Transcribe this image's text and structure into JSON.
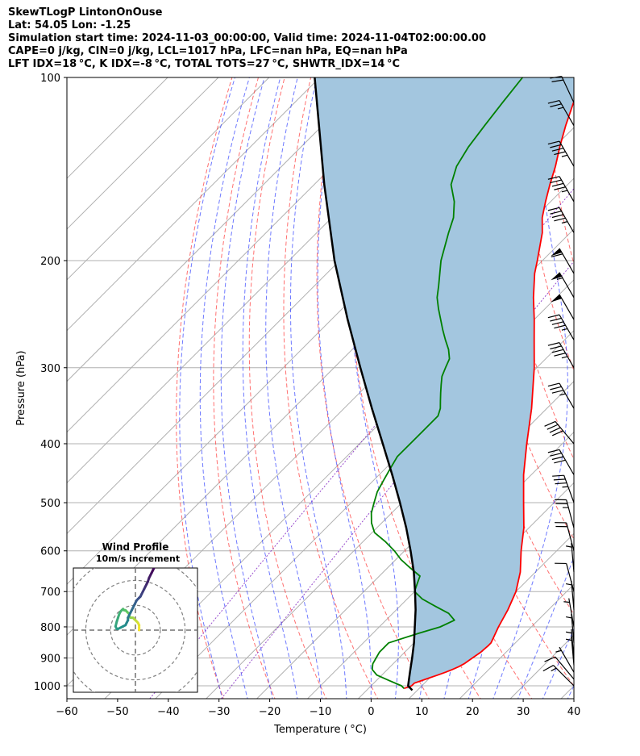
{
  "header": {
    "line1": "SkewTLogP LintonOnOuse",
    "line2": "Lat: 54.05   Lon: -1.25",
    "line3": "Simulation start time: 2024-11-03_00:00:00, Valid time: 2024-11-04T02:00:00.00",
    "line4": "CAPE=0 j/kg, CIN=0 j/kg, LCL=1017 hPa, LFC=nan hPa, EQ=nan hPa",
    "line5": "LFT IDX=18 °C, K IDX=-8 °C, TOTAL TOTS=27 °C, SHWTR_IDX=14 °C"
  },
  "chart_data": [
    {
      "type": "line",
      "subtype": "skew-t log-p",
      "xlabel": "Temperature ( °C)",
      "ylabel": "Pressure (hPa)",
      "xlim": [
        -60,
        40
      ],
      "ylim": [
        1050,
        100
      ],
      "y_scale": "log",
      "x_ticks": [
        -60,
        -50,
        -40,
        -30,
        -20,
        -10,
        0,
        10,
        20,
        30,
        40
      ],
      "x_tick_labels": [
        "−60",
        "−50",
        "−40",
        "−30",
        "−20",
        "−10",
        "0",
        "10",
        "20",
        "30",
        "40"
      ],
      "y_ticks": [
        1000,
        900,
        800,
        700,
        600,
        500,
        400,
        300,
        200,
        100
      ],
      "y_tick_labels": [
        "1000",
        "900",
        "800",
        "700",
        "600",
        "500",
        "400",
        "300",
        "200",
        "100"
      ],
      "grid": true,
      "series": [
        {
          "color": "#ff0000",
          "points": [
            [
              1010,
              7
            ],
            [
              1000,
              8
            ],
            [
              990,
              8
            ],
            [
              980,
              9
            ],
            [
              970,
              10
            ],
            [
              960,
              11
            ],
            [
              950,
              12
            ],
            [
              940,
              12.8
            ],
            [
              930,
              13.5
            ],
            [
              920,
              14
            ],
            [
              900,
              14.5
            ],
            [
              880,
              15
            ],
            [
              860,
              15.2
            ],
            [
              850,
              15.2
            ],
            [
              800,
              13.5
            ],
            [
              750,
              12
            ],
            [
              700,
              10
            ],
            [
              650,
              7
            ],
            [
              600,
              3
            ],
            [
              550,
              -1
            ],
            [
              500,
              -6
            ],
            [
              450,
              -11.5
            ],
            [
              400,
              -17
            ],
            [
              350,
              -23
            ],
            [
              300,
              -30.5
            ],
            [
              270,
              -36
            ],
            [
              250,
              -40
            ],
            [
              230,
              -44.5
            ],
            [
              210,
              -49
            ],
            [
              200,
              -51
            ],
            [
              180,
              -55.5
            ],
            [
              170,
              -58.5
            ],
            [
              160,
              -61
            ],
            [
              150,
              -63.5
            ],
            [
              140,
              -66
            ],
            [
              130,
              -69
            ],
            [
              120,
              -72
            ],
            [
              110,
              -75
            ],
            [
              100,
              -77.5
            ]
          ]
        },
        {
          "color": "#008000",
          "points": [
            [
              1010,
              7
            ],
            [
              1000,
              6
            ],
            [
              980,
              2.5
            ],
            [
              960,
              -1
            ],
            [
              950,
              -2
            ],
            [
              940,
              -3
            ],
            [
              920,
              -4
            ],
            [
              900,
              -4.5
            ],
            [
              880,
              -5
            ],
            [
              850,
              -5
            ],
            [
              820,
              -1
            ],
            [
              800,
              2
            ],
            [
              780,
              3.5
            ],
            [
              760,
              1
            ],
            [
              740,
              -3
            ],
            [
              720,
              -7
            ],
            [
              700,
              -10
            ],
            [
              680,
              -11
            ],
            [
              660,
              -12
            ],
            [
              640,
              -15.5
            ],
            [
              620,
              -19
            ],
            [
              600,
              -22
            ],
            [
              580,
              -25.5
            ],
            [
              560,
              -29.5
            ],
            [
              540,
              -32
            ],
            [
              520,
              -34
            ],
            [
              500,
              -35.5
            ],
            [
              480,
              -37
            ],
            [
              460,
              -38
            ],
            [
              440,
              -39
            ],
            [
              420,
              -40
            ],
            [
              400,
              -40
            ],
            [
              380,
              -40
            ],
            [
              360,
              -40
            ],
            [
              350,
              -41
            ],
            [
              340,
              -42.5
            ],
            [
              330,
              -44
            ],
            [
              320,
              -45.5
            ],
            [
              310,
              -47
            ],
            [
              300,
              -48
            ],
            [
              290,
              -49
            ],
            [
              280,
              -51
            ],
            [
              270,
              -53.5
            ],
            [
              260,
              -56
            ],
            [
              240,
              -61
            ],
            [
              230,
              -63.5
            ],
            [
              220,
              -65.5
            ],
            [
              200,
              -70
            ],
            [
              180,
              -74
            ],
            [
              170,
              -76
            ],
            [
              160,
              -79
            ],
            [
              150,
              -83
            ],
            [
              140,
              -85.5
            ],
            [
              130,
              -87
            ],
            [
              120,
              -88
            ],
            [
              110,
              -89
            ],
            [
              100,
              -90
            ]
          ]
        },
        {
          "color": "#000000",
          "points": [
            [
              1017,
              9
            ],
            [
              1000,
              7.3
            ],
            [
              950,
              5
            ],
            [
              900,
              2.6
            ],
            [
              850,
              0
            ],
            [
              800,
              -3
            ],
            [
              750,
              -6.2
            ],
            [
              700,
              -9.9
            ],
            [
              650,
              -14
            ],
            [
              600,
              -18.8
            ],
            [
              550,
              -24.2
            ],
            [
              500,
              -30.4
            ],
            [
              450,
              -37.4
            ],
            [
              400,
              -45.4
            ],
            [
              350,
              -54.5
            ],
            [
              300,
              -64.8
            ],
            [
              250,
              -76.8
            ],
            [
              200,
              -91
            ],
            [
              150,
              -108
            ],
            [
              100,
              -131
            ]
          ]
        }
      ],
      "shading": {
        "between": [
          "#ff0000 series",
          "#000000 series"
        ],
        "color": "#a3c6df"
      },
      "wind_barbs": [
        {
          "p": 1000,
          "dir": 315,
          "spd": 15
        },
        {
          "p": 975,
          "dir": 320,
          "spd": 10
        },
        {
          "p": 950,
          "dir": 330,
          "spd": 5
        },
        {
          "p": 925,
          "dir": 355,
          "spd": 5
        },
        {
          "p": 900,
          "dir": 355,
          "spd": 5
        },
        {
          "p": 850,
          "dir": 355,
          "spd": 5
        },
        {
          "p": 800,
          "dir": 350,
          "spd": 5
        },
        {
          "p": 750,
          "dir": 355,
          "spd": 5
        },
        {
          "p": 700,
          "dir": 345,
          "spd": 10
        },
        {
          "p": 650,
          "dir": 355,
          "spd": 5
        },
        {
          "p": 600,
          "dir": 345,
          "spd": 20
        },
        {
          "p": 550,
          "dir": 345,
          "spd": 25
        },
        {
          "p": 500,
          "dir": 340,
          "spd": 35
        },
        {
          "p": 450,
          "dir": 330,
          "spd": 40
        },
        {
          "p": 400,
          "dir": 320,
          "spd": 40
        },
        {
          "p": 350,
          "dir": 330,
          "spd": 35
        },
        {
          "p": 300,
          "dir": 330,
          "spd": 45
        },
        {
          "p": 270,
          "dir": 330,
          "spd": 45
        },
        {
          "p": 250,
          "dir": 330,
          "spd": 50
        },
        {
          "p": 230,
          "dir": 330,
          "spd": 55
        },
        {
          "p": 210,
          "dir": 330,
          "spd": 60
        },
        {
          "p": 180,
          "dir": 330,
          "spd": 45
        },
        {
          "p": 160,
          "dir": 330,
          "spd": 45
        },
        {
          "p": 140,
          "dir": 330,
          "spd": 45
        },
        {
          "p": 120,
          "dir": 330,
          "spd": 25
        },
        {
          "p": 110,
          "dir": 335,
          "spd": 20
        }
      ]
    },
    {
      "type": "scatter",
      "subtype": "hodograph",
      "title": "Wind Profile",
      "subtitle": "10m/s increment",
      "rings": [
        10,
        20,
        30,
        40
      ],
      "lim": [
        -25,
        25
      ],
      "colormap": "viridis",
      "u": [
        1.5,
        1.5,
        1.5,
        1,
        0.5,
        0,
        -0.5,
        -1,
        -1.5,
        -2,
        -2.5,
        -2.5,
        -3,
        -3.5,
        -4,
        -4.5,
        -5,
        -5.5,
        -6,
        -6.5,
        -7,
        -7.5,
        -8,
        -7.5,
        -7,
        -6,
        -5,
        -4,
        -3.5,
        -3,
        -3,
        -2.5,
        -2,
        -1.5,
        -1,
        -0.5,
        0,
        0.5,
        1,
        1.5,
        2,
        2.5,
        3,
        3.5,
        4,
        4.5,
        5,
        5.5,
        6,
        6.5,
        7,
        7.5
      ],
      "v": [
        0,
        1,
        2,
        3,
        3.5,
        4,
        4.5,
        5,
        5,
        5,
        5.5,
        6.5,
        7,
        7.5,
        8,
        8,
        8.5,
        8,
        7.5,
        6.5,
        5,
        3.5,
        1.5,
        0.5,
        0.5,
        1,
        1.5,
        2,
        3,
        4,
        5,
        6,
        7,
        8,
        9,
        10,
        11,
        12,
        12.5,
        13,
        13.5,
        14.5,
        15.5,
        16.5,
        17.5,
        18.5,
        19.5,
        21,
        22,
        23,
        24,
        25
      ]
    }
  ]
}
